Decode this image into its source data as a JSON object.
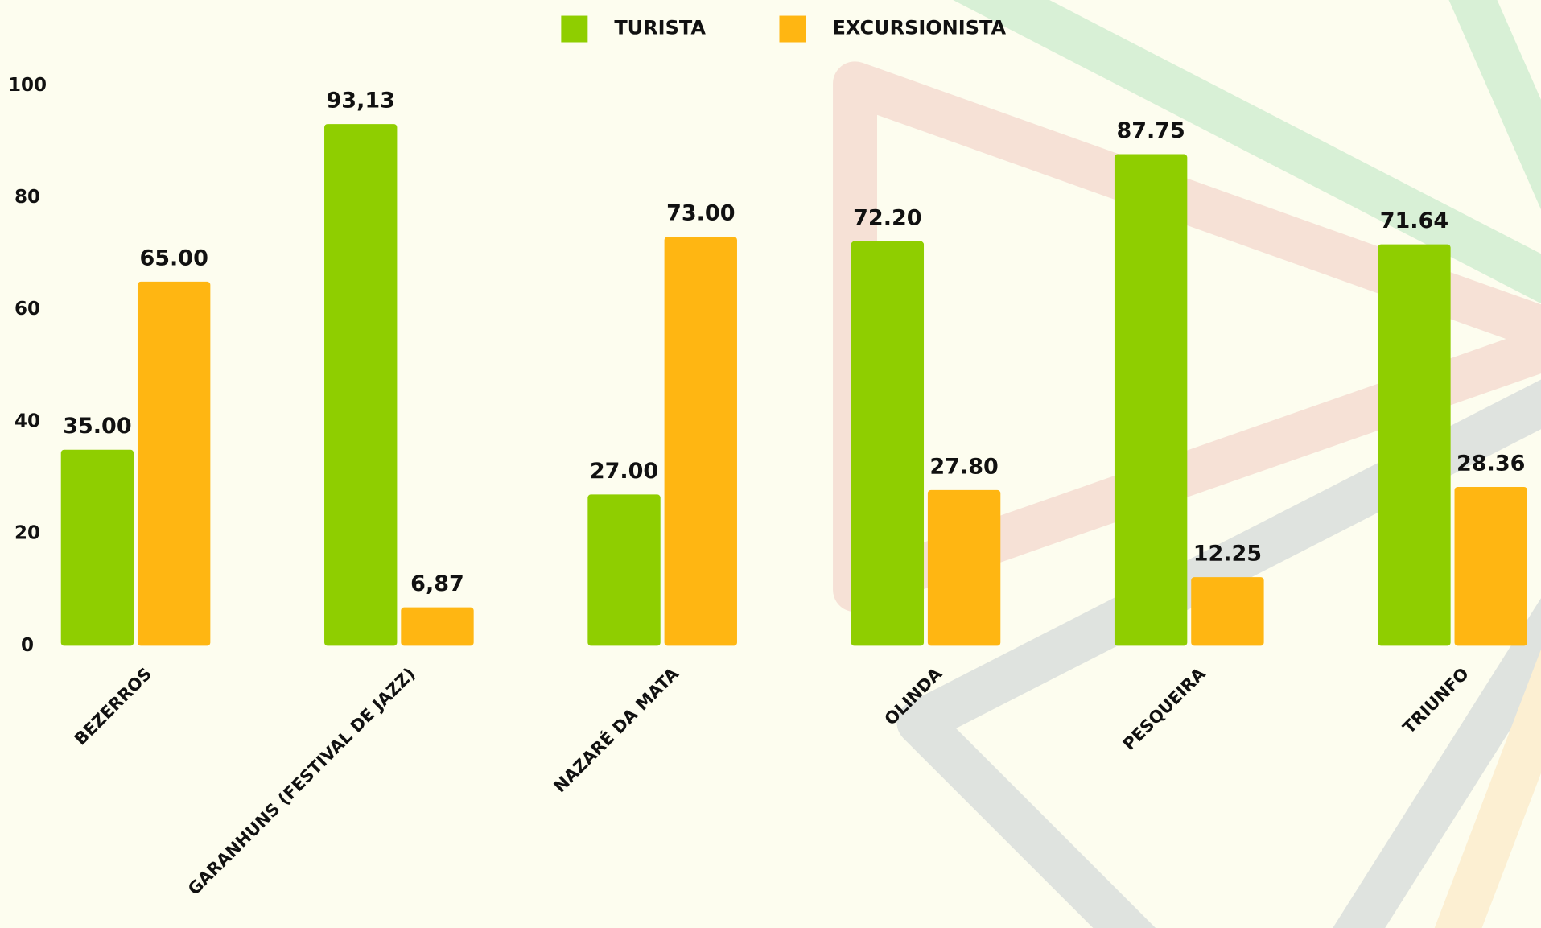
{
  "chart_data": {
    "type": "bar",
    "categories": [
      "BEZERROS",
      "GARANHUNS (FESTIVAL DE JAZZ)",
      "NAZARÉ DA MATA",
      "OLINDA",
      "PESQUEIRA",
      "TRIUNFO"
    ],
    "series": [
      {
        "name": "TURISTA",
        "color": "#8fce00",
        "values": [
          35.0,
          93.13,
          27.0,
          72.2,
          87.75,
          71.64
        ],
        "value_labels": [
          "35.00",
          "93,13",
          "27.00",
          "72.20",
          "87.75",
          "71.64"
        ]
      },
      {
        "name": "EXCURSIONISTA",
        "color": "#ffb612",
        "values": [
          65.0,
          6.87,
          73.0,
          27.8,
          12.25,
          28.36
        ],
        "value_labels": [
          "65.00",
          "6,87",
          "73.00",
          "27.80",
          "12.25",
          "28.36"
        ]
      }
    ],
    "ylim": [
      0,
      100
    ],
    "yticks": [
      0,
      20,
      40,
      60,
      80,
      100
    ],
    "grid": false
  }
}
